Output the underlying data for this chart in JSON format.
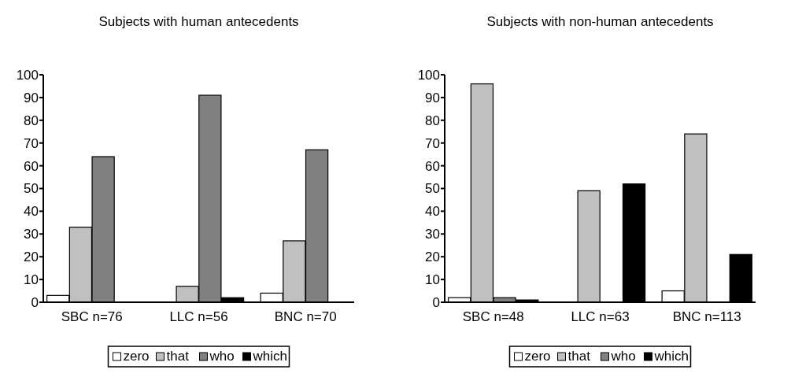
{
  "chart_data": [
    {
      "type": "bar",
      "title": "Subjects with human antecedents",
      "categories": [
        "SBC n=76",
        "LLC n=56",
        "BNC n=70"
      ],
      "series": [
        {
          "name": "zero",
          "color": "#ffffff",
          "values": [
            3,
            0,
            4
          ]
        },
        {
          "name": "that",
          "color": "#c0c0c0",
          "values": [
            33,
            7,
            27
          ]
        },
        {
          "name": "who",
          "color": "#808080",
          "values": [
            64,
            91,
            67
          ]
        },
        {
          "name": "which",
          "color": "#000000",
          "values": [
            0,
            2,
            0
          ]
        }
      ],
      "ylim": [
        0,
        100
      ],
      "yticks": [
        0,
        10,
        20,
        30,
        40,
        50,
        60,
        70,
        80,
        90,
        100
      ],
      "grid": false,
      "legend": "bottom"
    },
    {
      "type": "bar",
      "title": "Subjects with non-human antecedents",
      "categories": [
        "SBC n=48",
        "LLC n=63",
        "BNC n=113"
      ],
      "series": [
        {
          "name": "zero",
          "color": "#ffffff",
          "values": [
            2,
            0,
            5
          ]
        },
        {
          "name": "that",
          "color": "#c0c0c0",
          "values": [
            96,
            49,
            74
          ]
        },
        {
          "name": "who",
          "color": "#808080",
          "values": [
            2,
            0,
            0
          ]
        },
        {
          "name": "which",
          "color": "#000000",
          "values": [
            1,
            52,
            21
          ]
        }
      ],
      "ylim": [
        0,
        100
      ],
      "yticks": [
        0,
        10,
        20,
        30,
        40,
        50,
        60,
        70,
        80,
        90,
        100
      ],
      "grid": false,
      "legend": "bottom"
    }
  ]
}
